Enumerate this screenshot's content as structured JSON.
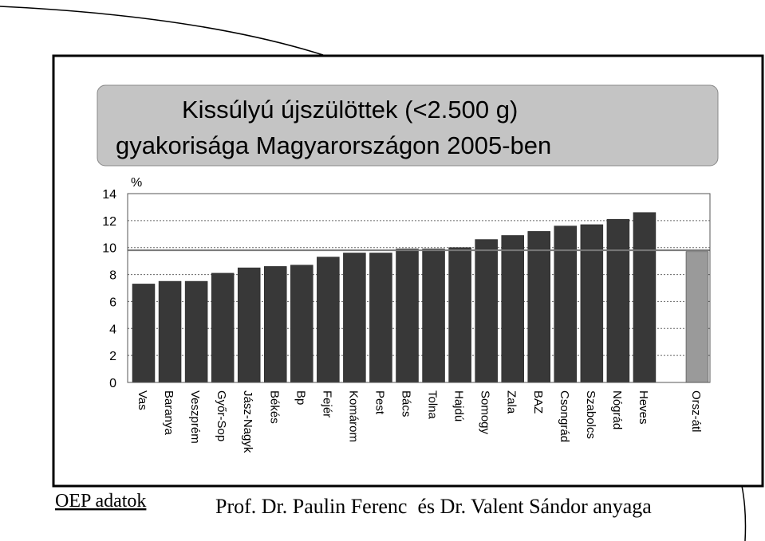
{
  "chart_data": {
    "type": "bar",
    "title": [
      "Kissúlyú újszülöttek (<2.500 g)",
      "gyakorisága Magyarországon 2005-ben"
    ],
    "y_label": "%",
    "categories": [
      "Vas",
      "Baranya",
      "Veszprém",
      "Győr-Sop",
      "Jász-Nagyk",
      "Békés",
      "Bp",
      "Fejér",
      "Komárom",
      "Pest",
      "Bács",
      "Tolna",
      "Hajdú",
      "Somogy",
      "Zala",
      "BAZ",
      "Csongrád",
      "Szabolcs",
      "Nógrád",
      "Heves",
      "Orsz-átl"
    ],
    "values": [
      7.3,
      7.5,
      7.5,
      8.1,
      8.5,
      8.6,
      8.7,
      9.3,
      9.6,
      9.6,
      9.9,
      9.9,
      10.0,
      10.6,
      10.9,
      11.2,
      11.6,
      11.7,
      12.1,
      12.6,
      9.7
    ],
    "colors": [
      "#383838",
      "#383838",
      "#383838",
      "#383838",
      "#383838",
      "#383838",
      "#383838",
      "#383838",
      "#383838",
      "#383838",
      "#383838",
      "#383838",
      "#383838",
      "#383838",
      "#383838",
      "#383838",
      "#383838",
      "#383838",
      "#383838",
      "#383838",
      "#9a9a9a"
    ],
    "reference_line": 9.8,
    "ylim": [
      0,
      14
    ],
    "yticks": [
      0,
      2,
      4,
      6,
      8,
      10,
      12,
      14
    ],
    "grid": true
  },
  "footer": {
    "source": "OEP adatok",
    "credit": "Prof. Dr. Paulin Ferenc  és Dr. Valent Sándor anyaga"
  }
}
